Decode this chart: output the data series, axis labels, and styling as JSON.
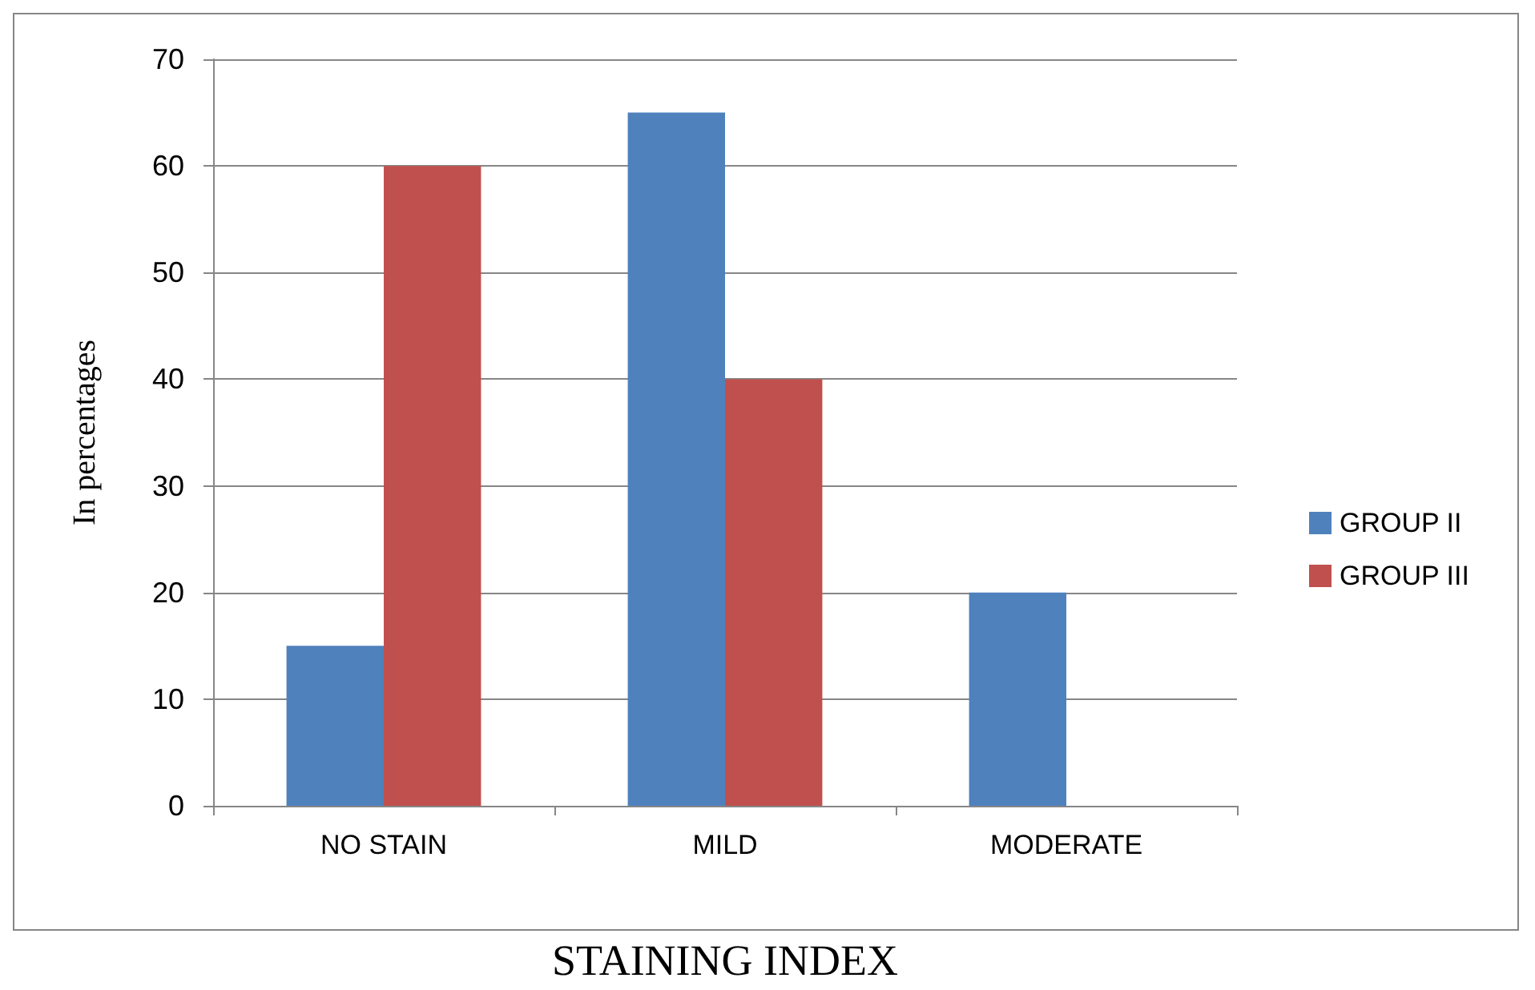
{
  "chart_data": {
    "type": "bar",
    "xlabel": "STAINING INDEX",
    "ylabel": "In percentages",
    "categories": [
      "NO STAIN",
      "MILD",
      "MODERATE"
    ],
    "series": [
      {
        "name": "GROUP II",
        "color": "#4f81bd",
        "values": [
          15,
          65,
          20
        ]
      },
      {
        "name": "GROUP III",
        "color": "#c0504d",
        "values": [
          60,
          40,
          0
        ]
      }
    ],
    "ylim": [
      0,
      70
    ],
    "yticks": [
      0,
      10,
      20,
      30,
      40,
      50,
      60,
      70
    ],
    "grid": "y",
    "legend": "right"
  }
}
